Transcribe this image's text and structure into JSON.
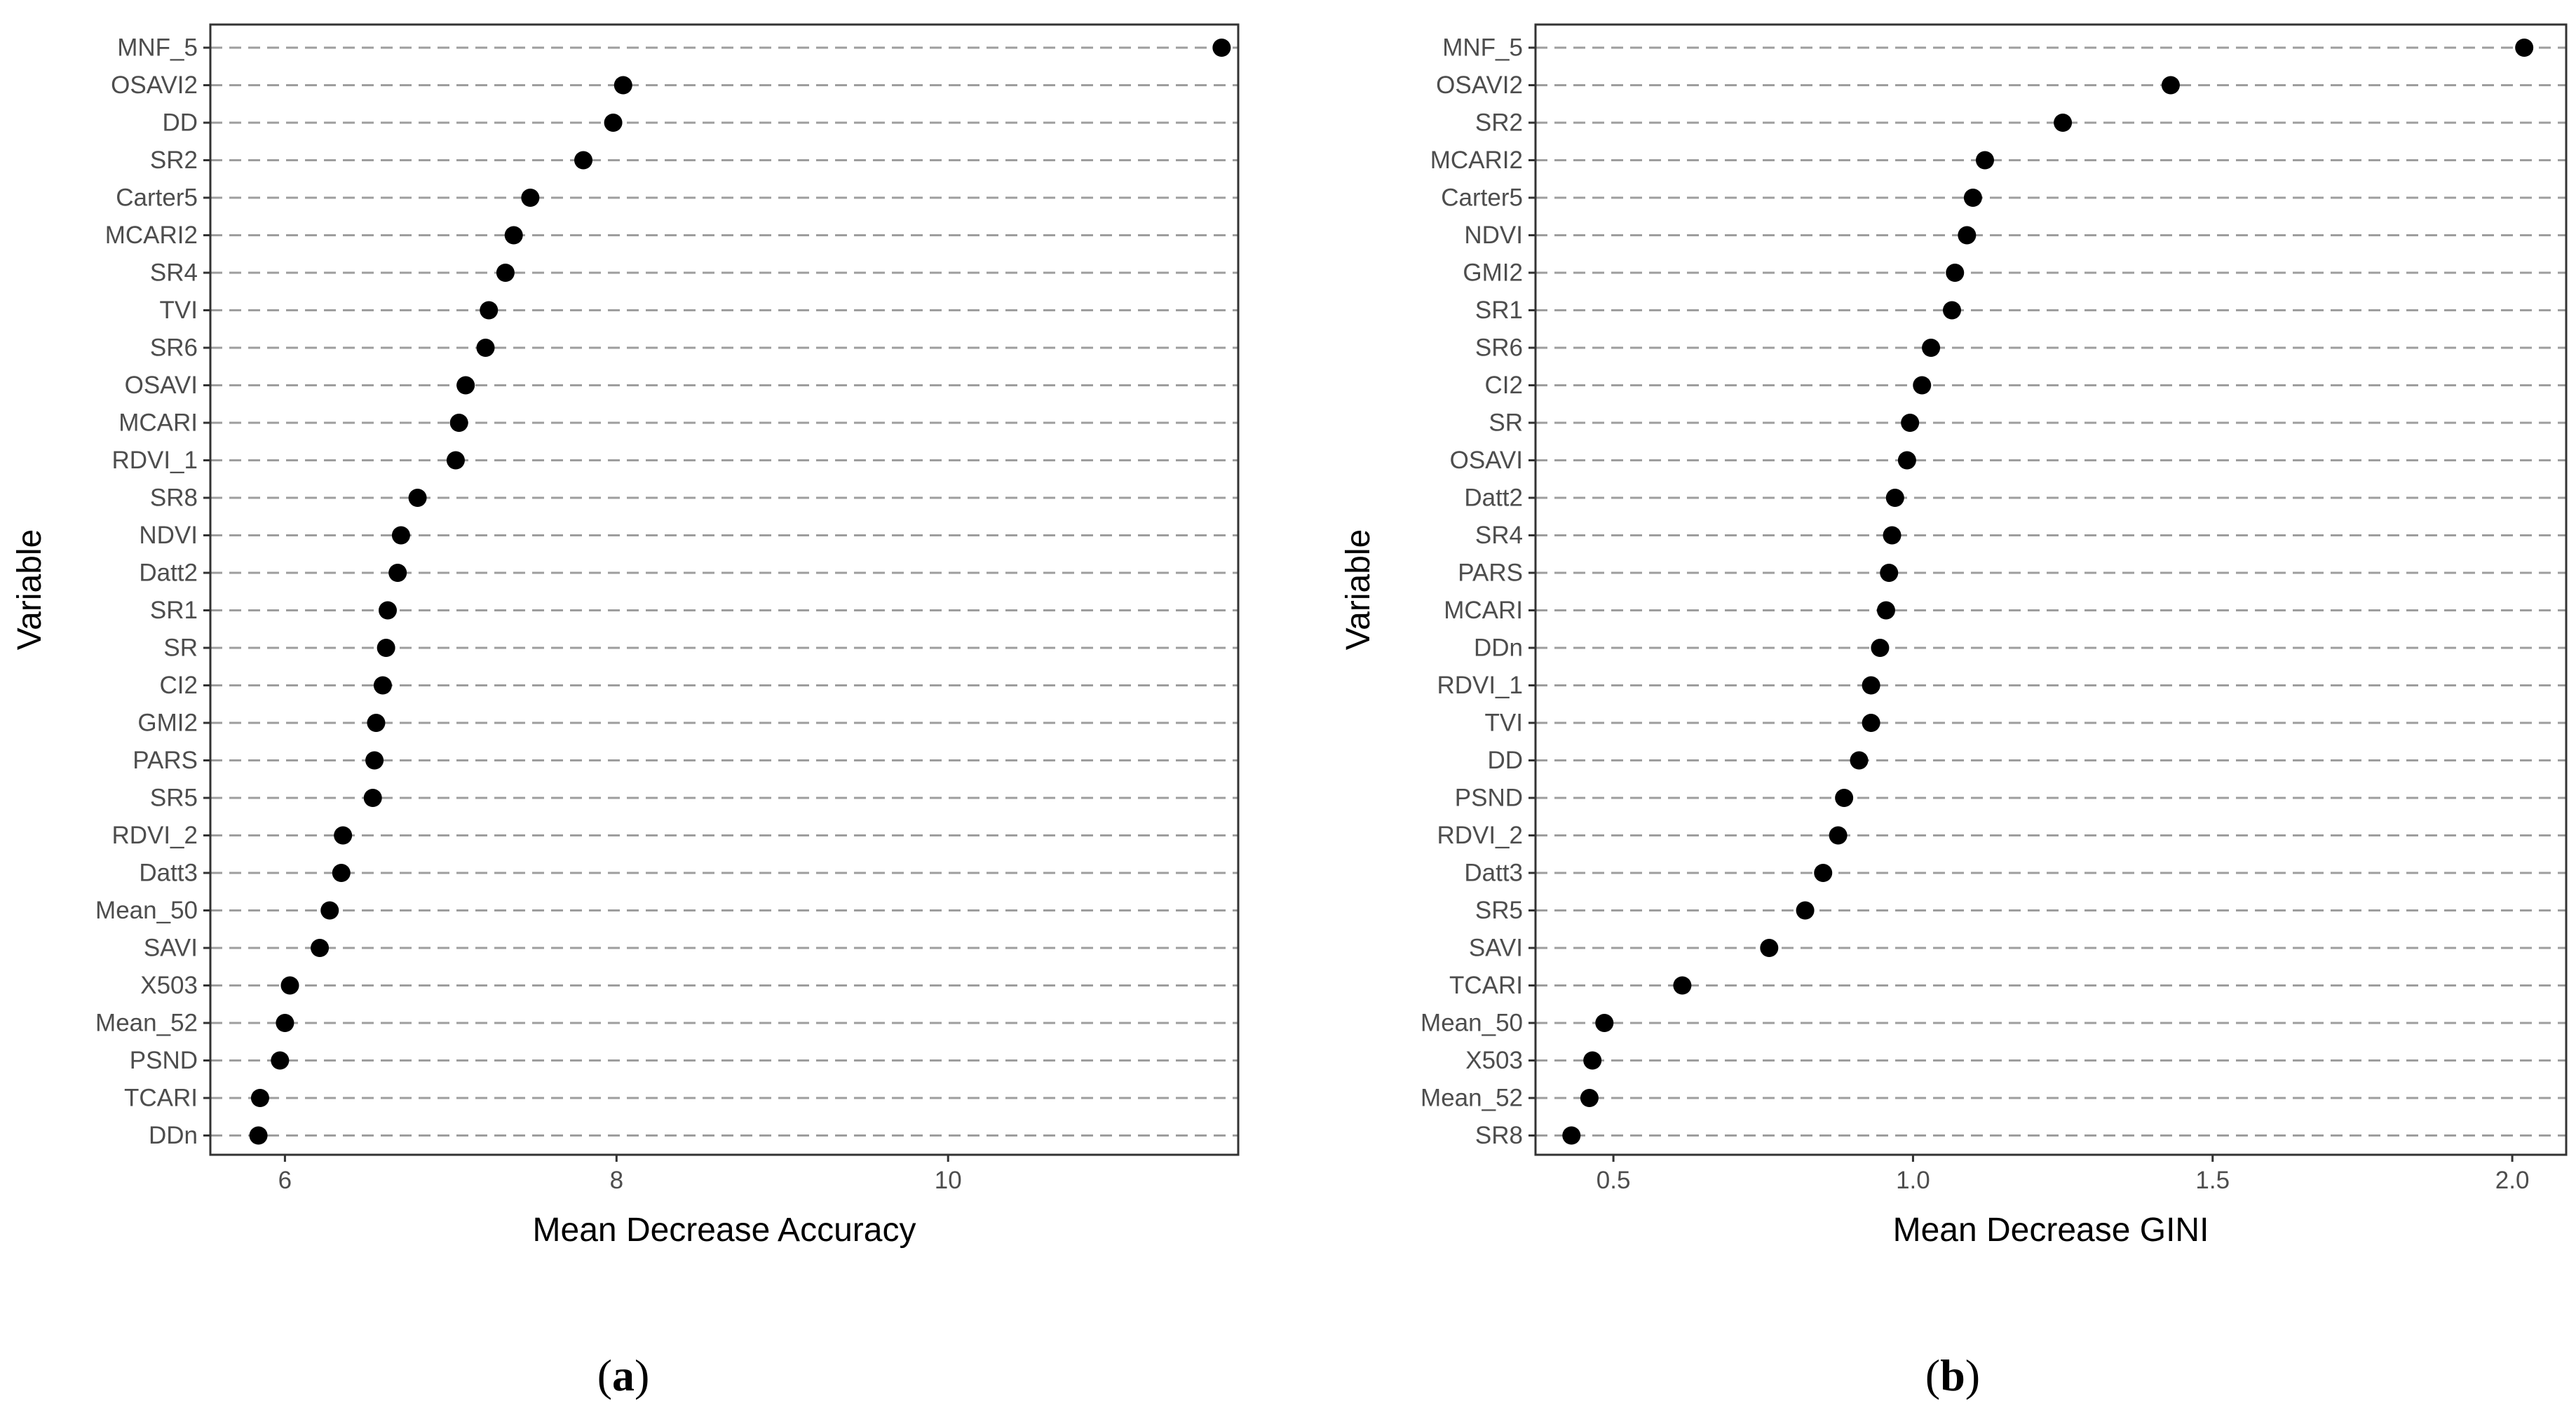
{
  "colors": {
    "point": "#000000",
    "gridline": "#9e9e9e",
    "frame": "#333333",
    "tick_text": "#4d4d4d"
  },
  "chart_data": [
    {
      "panel": "a",
      "panel_label_open": "(",
      "panel_label_letter": "a",
      "panel_label_close": ")",
      "type": "scatter",
      "title": "",
      "xlabel": "Mean Decrease Accuracy",
      "ylabel": "Variable",
      "xlim": [
        5.55,
        11.75
      ],
      "xticks": [
        6,
        8,
        10
      ],
      "xtick_labels": [
        "6",
        "8",
        "10"
      ],
      "grid": "horizontal dashed",
      "categories": [
        "MNF_5",
        "OSAVI2",
        "DD",
        "SR2",
        "Carter5",
        "MCARI2",
        "SR4",
        "TVI",
        "SR6",
        "OSAVI",
        "MCARI",
        "RDVI_1",
        "SR8",
        "NDVI",
        "Datt2",
        "SR1",
        "SR",
        "CI2",
        "GMI2",
        "PARS",
        "SR5",
        "RDVI_2",
        "Datt3",
        "Mean_50",
        "SAVI",
        "X503",
        "Mean_52",
        "PSND",
        "TCARI",
        "DDn"
      ],
      "values": [
        11.65,
        8.04,
        7.98,
        7.8,
        7.48,
        7.38,
        7.33,
        7.23,
        7.21,
        7.09,
        7.05,
        7.03,
        6.8,
        6.7,
        6.68,
        6.62,
        6.61,
        6.59,
        6.55,
        6.54,
        6.53,
        6.35,
        6.34,
        6.27,
        6.21,
        6.03,
        6.0,
        5.97,
        5.85,
        5.84
      ]
    },
    {
      "panel": "b",
      "panel_label_open": "(",
      "panel_label_letter": "b",
      "panel_label_close": ")",
      "type": "scatter",
      "title": "",
      "xlabel": "Mean Decrease GINI",
      "ylabel": "Variable",
      "xlim": [
        0.37,
        2.09
      ],
      "xticks": [
        0.5,
        1.0,
        1.5,
        2.0
      ],
      "xtick_labels": [
        "0.5",
        "1.0",
        "1.5",
        "2.0"
      ],
      "grid": "horizontal dashed",
      "categories": [
        "MNF_5",
        "OSAVI2",
        "SR2",
        "MCARI2",
        "Carter5",
        "NDVI",
        "GMI2",
        "SR1",
        "SR6",
        "CI2",
        "SR",
        "OSAVI",
        "Datt2",
        "SR4",
        "PARS",
        "MCARI",
        "DDn",
        "RDVI_1",
        "TVI",
        "DD",
        "PSND",
        "RDVI_2",
        "Datt3",
        "SR5",
        "SAVI",
        "TCARI",
        "Mean_50",
        "X503",
        "Mean_52",
        "SR8"
      ],
      "values": [
        2.02,
        1.43,
        1.25,
        1.12,
        1.1,
        1.09,
        1.07,
        1.065,
        1.03,
        1.015,
        0.995,
        0.99,
        0.97,
        0.965,
        0.96,
        0.955,
        0.945,
        0.93,
        0.93,
        0.91,
        0.885,
        0.875,
        0.85,
        0.82,
        0.76,
        0.615,
        0.485,
        0.465,
        0.46,
        0.43
      ]
    }
  ]
}
